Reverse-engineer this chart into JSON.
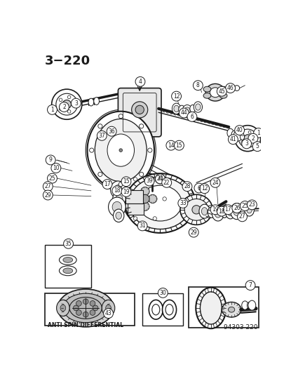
{
  "page_number": "3-220",
  "doc_number": "94303 220",
  "background_color": "#ffffff",
  "line_color": "#1a1a1a",
  "figsize": [
    4.15,
    5.33
  ],
  "dpi": 100,
  "title_text": "3−220",
  "bottom_label": "ANTI SPIN DIFFERENTIAL",
  "gray_fill": "#888888",
  "light_gray": "#cccccc",
  "mid_gray": "#999999"
}
